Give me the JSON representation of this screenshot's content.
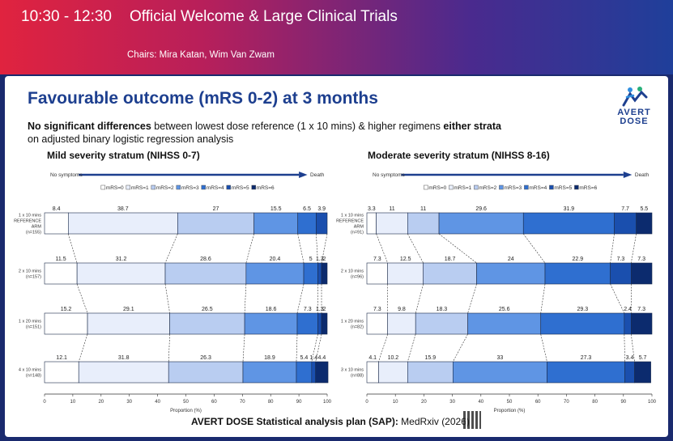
{
  "banner": {
    "time": "10:30 - 12:30",
    "title": "Official Welcome & Large Clinical Trials",
    "chairs": "Chairs: Mira Katan, Wim Van Zwam"
  },
  "slide": {
    "title": "Favourable outcome (mRS 0-2) at 3 months",
    "subtitle_parts": [
      {
        "text": "No significant differences",
        "bold": true
      },
      {
        "text": " between lowest dose reference (1 x 10 mins) & higher regimens ",
        "bold": false
      },
      {
        "text": "either strata",
        "bold": true
      },
      {
        "text": " on adjusted binary logistic regression analysis",
        "bold": false
      }
    ],
    "logo_text": [
      "AVERT",
      "DOSE"
    ],
    "footer_bold": "AVERT DOSE Statistical analysis plan (SAP):",
    "footer_rest": " MedRxiv (2026)"
  },
  "colors": {
    "banner_left": "#e0233f",
    "banner_right": "#1f3f9a",
    "title": "#1d3f8f",
    "mrs": [
      "#ffffff",
      "#e8eefb",
      "#b9cdf1",
      "#5f95e4",
      "#2f6fd0",
      "#1a4fae",
      "#0c2b6e"
    ]
  },
  "chart_data": [
    {
      "type": "bar",
      "title": "Mild severity stratum (NIHSS 0-7)",
      "arrow_left": "No symptoms",
      "arrow_right": "Death",
      "legend": [
        "mRS=0",
        "mRS=1",
        "mRS=2",
        "mRS=3",
        "mRS=4",
        "mRS=5",
        "mRS=6"
      ],
      "xlabel": "Proportion (%)",
      "xlim": [
        0,
        100
      ],
      "xticks": [
        "0",
        "10",
        "20",
        "30",
        "40",
        "50",
        "60",
        "70",
        "80",
        "90",
        "100"
      ],
      "rows": [
        {
          "label": [
            "1 x 10 mins",
            "REFERENCE",
            "ARM",
            "(n=155)"
          ],
          "values": [
            8.4,
            38.7,
            27,
            15.5,
            6.5,
            3.9,
            0
          ],
          "labels": [
            "8.4",
            "38.7",
            "27",
            "15.5",
            "6.5",
            "3.9",
            ""
          ]
        },
        {
          "label": [
            "2 x 10 mins",
            "(n=157)"
          ],
          "values": [
            11.5,
            31.2,
            28.6,
            20.4,
            5,
            1.3,
            2
          ],
          "labels": [
            "11.5",
            "31.2",
            "28.6",
            "20.4",
            "5",
            "1.3",
            "2"
          ]
        },
        {
          "label": [
            "1 x 20 mins",
            "(n=151)"
          ],
          "values": [
            15.2,
            29.1,
            26.5,
            18.6,
            7.3,
            1.3,
            2
          ],
          "labels": [
            "15.2",
            "29.1",
            "26.5",
            "18.6",
            "7.3",
            "1.3",
            "2"
          ]
        },
        {
          "label": [
            "4 x 10 mins",
            "(n=148)"
          ],
          "values": [
            12.1,
            31.8,
            26.3,
            18.9,
            5.4,
            1.4,
            4.4
          ],
          "labels": [
            "12.1",
            "31.8",
            "26.3",
            "18.9",
            "5.4",
            "1.4",
            "4.4"
          ]
        }
      ]
    },
    {
      "type": "bar",
      "title": "Moderate severity stratum (NIHSS 8-16)",
      "arrow_left": "No symptoms",
      "arrow_right": "Death",
      "legend": [
        "mRS=0",
        "mRS=1",
        "mRS=2",
        "mRS=3",
        "mRS=4",
        "mRS=5",
        "mRS=6"
      ],
      "xlabel": "Proportion (%)",
      "xlim": [
        0,
        100
      ],
      "xticks": [
        "0",
        "10",
        "20",
        "30",
        "40",
        "50",
        "60",
        "70",
        "80",
        "90",
        "100"
      ],
      "rows": [
        {
          "label": [
            "1 x 10 mins",
            "REFERENCE",
            "ARM",
            "(n=91)"
          ],
          "values": [
            3.3,
            11,
            11,
            29.6,
            31.9,
            7.7,
            5.5
          ],
          "labels": [
            "3.3",
            "11",
            "11",
            "29.6",
            "31.9",
            "7.7",
            "5.5"
          ]
        },
        {
          "label": [
            "2 x 10 mins",
            "(n=96)"
          ],
          "values": [
            7.3,
            12.5,
            18.7,
            24,
            22.9,
            7.3,
            7.3
          ],
          "labels": [
            "7.3",
            "12.5",
            "18.7",
            "24",
            "22.9",
            "7.3",
            "7.3"
          ]
        },
        {
          "label": [
            "1 x 20 mins",
            "(n=82)"
          ],
          "values": [
            7.3,
            9.8,
            18.3,
            25.6,
            29.3,
            2.4,
            7.3
          ],
          "labels": [
            "7.3",
            "9.8",
            "18.3",
            "25.6",
            "29.3",
            "2.4",
            "7.3"
          ]
        },
        {
          "label": [
            "3 x 10 mins",
            "(n=88)"
          ],
          "values": [
            4.1,
            10.2,
            15.9,
            33,
            27.3,
            3.4,
            5.7
          ],
          "labels": [
            "4.1",
            "10.2",
            "15.9",
            "33",
            "27.3",
            "3.4",
            "5.7"
          ]
        }
      ]
    }
  ]
}
